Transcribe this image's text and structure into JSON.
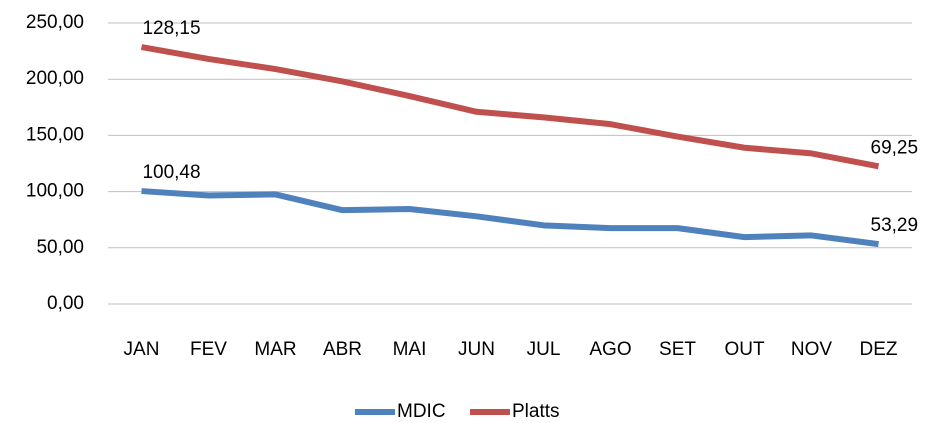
{
  "chart_data": {
    "type": "line",
    "stacked": true,
    "categories": [
      "JAN",
      "FEV",
      "MAR",
      "ABR",
      "MAI",
      "JUN",
      "JUL",
      "AGO",
      "SET",
      "OUT",
      "NOV",
      "DEZ"
    ],
    "series": [
      {
        "name": "MDIC",
        "color": "#4f81bd",
        "values": [
          100.48,
          96.5,
          97.5,
          83.5,
          84.5,
          78,
          70,
          67.5,
          67.5,
          59.5,
          61,
          53.29
        ],
        "value_labels": [
          "100,48",
          null,
          null,
          null,
          null,
          null,
          null,
          null,
          null,
          null,
          null,
          "53,29"
        ]
      },
      {
        "name": "Platts",
        "color": "#c0504d",
        "values": [
          128.15,
          121.5,
          111.5,
          114.5,
          100.5,
          93,
          96,
          92.5,
          81.5,
          79.5,
          73,
          69.25
        ],
        "value_labels": [
          "128,15",
          null,
          null,
          null,
          null,
          null,
          null,
          null,
          null,
          null,
          null,
          "69,25"
        ]
      }
    ],
    "ylim": [
      0,
      250
    ],
    "yticks": [
      {
        "value": 0,
        "label": "0,00"
      },
      {
        "value": 50,
        "label": "50,00"
      },
      {
        "value": 100,
        "label": "100,00"
      },
      {
        "value": 150,
        "label": "150,00"
      },
      {
        "value": 200,
        "label": "200,00"
      },
      {
        "value": 250,
        "label": "250,00"
      }
    ],
    "grid": true,
    "legend": "bottom"
  }
}
